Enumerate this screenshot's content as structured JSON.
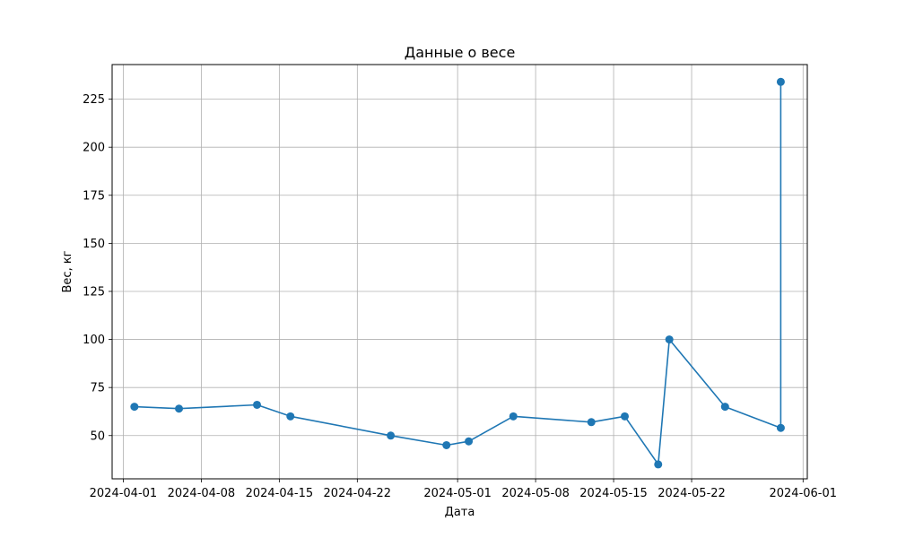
{
  "chart_data": {
    "type": "line",
    "title": "Данные о весе",
    "xlabel": "Дата",
    "ylabel": "Вес, кг",
    "x_axis_type": "date",
    "xlim": [
      "2023-03-31",
      "2024-06-01"
    ],
    "ylim": [
      27.5,
      243
    ],
    "grid": true,
    "x_ticks": [
      "2024-04-01",
      "2024-04-08",
      "2024-04-15",
      "2024-04-22",
      "2024-05-01",
      "2024-05-08",
      "2024-05-15",
      "2024-05-22",
      "2024-06-01"
    ],
    "y_ticks": [
      50,
      75,
      100,
      125,
      150,
      175,
      200,
      225
    ],
    "series": [
      {
        "color": "#1f77b4",
        "marker": "circle",
        "x": [
          "2024-04-02",
          "2024-04-06",
          "2024-04-13",
          "2024-04-16",
          "2024-04-25",
          "2024-04-30",
          "2024-05-02",
          "2024-05-06",
          "2024-05-13",
          "2024-05-16",
          "2024-05-19",
          "2024-05-20",
          "2024-05-25",
          "2024-05-30",
          "2024-05-30"
        ],
        "y": [
          65,
          64,
          66,
          60,
          50,
          45,
          47,
          60,
          57,
          60,
          35,
          100,
          65,
          54,
          234
        ]
      }
    ]
  }
}
